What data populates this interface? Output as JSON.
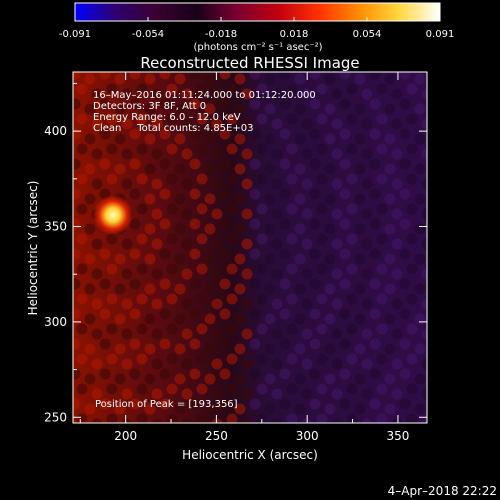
{
  "colorbar": {
    "ticks": [
      "-0.091",
      "-0.054",
      "-0.018",
      "0.018",
      "0.054",
      "0.091"
    ],
    "unit_label": "(photons cm⁻² s⁻¹ asec⁻²)",
    "colors": [
      "#0000ff",
      "#2f0070",
      "#3a0030",
      "#1a001a",
      "#7a0030",
      "#c00010",
      "#ff3000",
      "#ff8c00",
      "#ffd840",
      "#ffffff"
    ]
  },
  "title": "Reconstructed RHESSI Image",
  "info": {
    "line1": "16–May–2016 01:11:24.000 to 01:12:20.000",
    "line2": "Detectors: 3F 8F, Att 0",
    "line3": "Energy Range: 6.0 – 12.0 keV",
    "line4": "Clean     Total counts: 4.85E+03",
    "peak": "Position of Peak = [193,356]"
  },
  "footer_date": "4–Apr–2018 22:22",
  "chart_data": {
    "type": "heatmap",
    "title": "Reconstructed RHESSI Image",
    "xlabel": "Heliocentric X (arcsec)",
    "ylabel": "Heliocentric Y (arcsec)",
    "xlim": [
      171,
      366
    ],
    "ylim": [
      247,
      431
    ],
    "xticks": [
      200,
      250,
      300,
      350
    ],
    "yticks": [
      250,
      300,
      350,
      400
    ],
    "colorbar_range": [
      -0.091,
      0.091
    ],
    "peak": {
      "x": 193,
      "y": 356
    }
  }
}
